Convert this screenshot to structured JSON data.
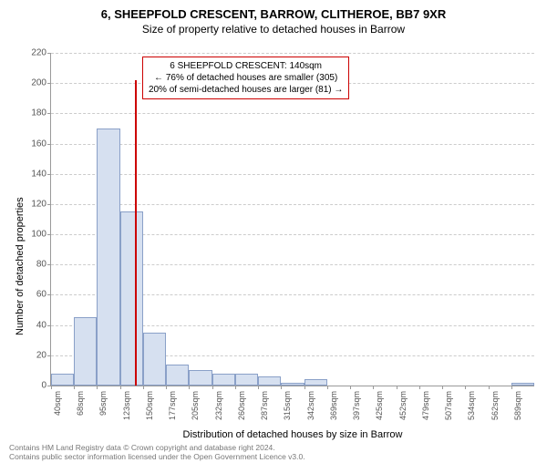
{
  "title_main": "6, SHEEPFOLD CRESCENT, BARROW, CLITHEROE, BB7 9XR",
  "title_sub": "Size of property relative to detached houses in Barrow",
  "y_axis_label": "Number of detached properties",
  "x_axis_label": "Distribution of detached houses by size in Barrow",
  "chart": {
    "type": "histogram",
    "y_max": 220,
    "y_ticks": [
      0,
      20,
      40,
      60,
      80,
      100,
      120,
      140,
      160,
      180,
      200,
      220
    ],
    "x_labels": [
      "40sqm",
      "68sqm",
      "95sqm",
      "123sqm",
      "150sqm",
      "177sqm",
      "205sqm",
      "232sqm",
      "260sqm",
      "287sqm",
      "315sqm",
      "342sqm",
      "369sqm",
      "397sqm",
      "425sqm",
      "452sqm",
      "479sqm",
      "507sqm",
      "534sqm",
      "562sqm",
      "589sqm"
    ],
    "values": [
      8,
      45,
      170,
      115,
      35,
      14,
      10,
      8,
      8,
      6,
      2,
      4,
      0,
      0,
      0,
      0,
      0,
      0,
      0,
      0,
      2
    ],
    "bar_fill": "#d6e0f0",
    "bar_stroke": "#8aa0c8",
    "grid_color": "#cccccc",
    "axis_color": "#999999",
    "marker_value_sqm": 140,
    "marker_color": "#cc0000"
  },
  "annotation": {
    "line1": "6 SHEEPFOLD CRESCENT: 140sqm",
    "line2": "← 76% of detached houses are smaller (305)",
    "line3": "20% of semi-detached houses are larger (81) →"
  },
  "footer_line1": "Contains HM Land Registry data © Crown copyright and database right 2024.",
  "footer_line2": "Contains public sector information licensed under the Open Government Licence v3.0."
}
